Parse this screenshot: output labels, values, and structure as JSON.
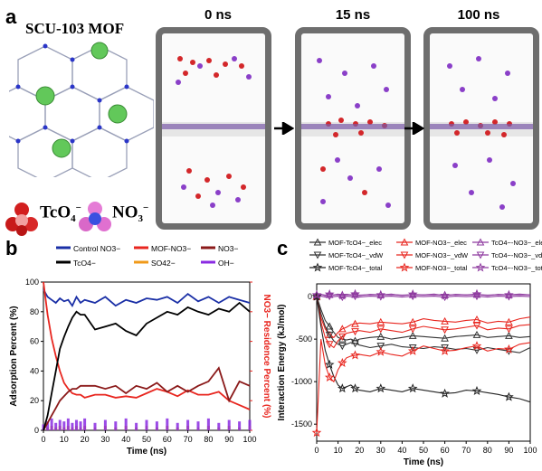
{
  "panel_a": {
    "letter": "a",
    "mof_title": "SCU-103 MOF",
    "times": [
      "0 ns",
      "15 ns",
      "100 ns"
    ],
    "ion1": "TcO",
    "ion1_sub": "4",
    "ion1_sup": "−",
    "ion2": "NO",
    "ion2_sub": "3",
    "ion2_sup": "−"
  },
  "panel_b": {
    "letter": "b",
    "legend": [
      "Control NO3−",
      "MOF-NO3−",
      "NO3−",
      "TcO4−",
      "SO42−",
      "OH−"
    ],
    "legend_colors": [
      "#1a2fa6",
      "#e8261f",
      "#8b1a1a",
      "#000000",
      "#f09a1a",
      "#8a2be2"
    ],
    "chart_data": {
      "type": "line",
      "xlabel": "Time (ns)",
      "ylabel": "Adsorption Percent (%)",
      "y2label": "NO3− Residence Percent (%)",
      "xlim": [
        0,
        100
      ],
      "ylim": [
        0,
        100
      ],
      "x_ticks": [
        "0",
        "10",
        "20",
        "30",
        "40",
        "50",
        "60",
        "70",
        "80",
        "90",
        "100"
      ],
      "y_ticks": [
        "0",
        "20",
        "40",
        "60",
        "80",
        "100"
      ],
      "x": [
        0,
        2,
        4,
        6,
        8,
        10,
        12,
        14,
        16,
        18,
        20,
        25,
        30,
        35,
        40,
        45,
        50,
        55,
        60,
        65,
        70,
        75,
        80,
        85,
        90,
        95,
        100
      ],
      "series": [
        {
          "name": "Control NO3−",
          "color": "#1a2fa6",
          "values": [
            95,
            90,
            88,
            86,
            89,
            87,
            88,
            84,
            90,
            86,
            88,
            86,
            90,
            84,
            88,
            86,
            89,
            88,
            90,
            86,
            92,
            87,
            90,
            86,
            90,
            88,
            86
          ]
        },
        {
          "name": "MOF-NO3−",
          "color": "#e8261f",
          "values": [
            100,
            78,
            62,
            50,
            40,
            32,
            28,
            25,
            24,
            24,
            22,
            24,
            24,
            22,
            23,
            22,
            25,
            28,
            26,
            23,
            27,
            24,
            24,
            26,
            20,
            17,
            14
          ]
        },
        {
          "name": "NO3−",
          "color": "#8b1a1a",
          "values": [
            0,
            5,
            10,
            15,
            20,
            23,
            26,
            28,
            28,
            30,
            30,
            30,
            28,
            30,
            25,
            30,
            28,
            32,
            26,
            30,
            26,
            30,
            33,
            42,
            20,
            33,
            30
          ]
        },
        {
          "name": "TcO4−",
          "color": "#000000",
          "values": [
            0,
            10,
            25,
            40,
            55,
            63,
            70,
            76,
            80,
            78,
            78,
            68,
            70,
            72,
            67,
            64,
            72,
            76,
            80,
            78,
            83,
            80,
            78,
            82,
            80,
            86,
            80
          ]
        },
        {
          "name": "SO42−",
          "color": "#f09a1a",
          "values": [
            0,
            2,
            3,
            2,
            3,
            2,
            3,
            2,
            3,
            2,
            3,
            2,
            3,
            2,
            3,
            2,
            3,
            2,
            3,
            2,
            3,
            2,
            3,
            2,
            3,
            2,
            3
          ]
        },
        {
          "name": "OH−",
          "color": "#8a2be2",
          "values": [
            4,
            6,
            8,
            5,
            7,
            6,
            8,
            5,
            7,
            6,
            8,
            5,
            7,
            6,
            8,
            5,
            7,
            6,
            8,
            5,
            7,
            6,
            8,
            5,
            7,
            6,
            7
          ]
        }
      ]
    }
  },
  "panel_c": {
    "letter": "c",
    "legend": [
      "MOF-TcO4−_elec",
      "MOF-NO3−_elec",
      "TcO4−-NO3−_elec",
      "MOF-TcO4−_vdW",
      "MOF-NO3−_vdW",
      "TcO4−-NO3−_vdW",
      "MOF-TcO4−_total",
      "MOF-NO3−_total",
      "TcO4−-NO3−_total"
    ],
    "chart_data": {
      "type": "line",
      "xlabel": "Time (ns)",
      "ylabel": "Interaction Energy (kJ/mol)",
      "xlim": [
        0,
        100
      ],
      "ylim": [
        -1700,
        150
      ],
      "x_ticks": [
        "0",
        "10",
        "20",
        "30",
        "40",
        "50",
        "60",
        "70",
        "80",
        "90",
        "100"
      ],
      "y_ticks": [
        "0",
        "-500",
        "-1000",
        "-1500"
      ],
      "x": [
        0,
        2,
        4,
        6,
        8,
        10,
        12,
        14,
        16,
        18,
        20,
        25,
        30,
        35,
        40,
        45,
        50,
        55,
        60,
        65,
        70,
        75,
        80,
        85,
        90,
        95,
        100
      ],
      "series": [
        {
          "name": "MOF-TcO4−_elec",
          "color": "#333333",
          "marker": "triangle",
          "values": [
            0,
            -150,
            -280,
            -350,
            -420,
            -480,
            -500,
            -510,
            -500,
            -520,
            -500,
            -480,
            -470,
            -500,
            -480,
            -460,
            -470,
            -480,
            -490,
            -470,
            -460,
            -450,
            -480,
            -470,
            -460,
            -480,
            -470
          ]
        },
        {
          "name": "MOF-NO3−_elec",
          "color": "#e8261f",
          "marker": "triangle",
          "values": [
            0,
            -250,
            -380,
            -450,
            -480,
            -420,
            -380,
            -360,
            -330,
            -320,
            -310,
            -320,
            -300,
            -310,
            -320,
            -300,
            -260,
            -280,
            -290,
            -300,
            -280,
            -270,
            -310,
            -290,
            -300,
            -260,
            -240
          ]
        },
        {
          "name": "TcO4−-NO3−_elec",
          "color": "#8e3a9f",
          "marker": "triangle",
          "values": [
            20,
            25,
            18,
            22,
            20,
            24,
            18,
            22,
            20,
            24,
            18,
            22,
            20,
            24,
            18,
            22,
            20,
            24,
            18,
            22,
            20,
            24,
            18,
            22,
            20,
            24,
            20
          ]
        },
        {
          "name": "MOF-TcO4−_vdW",
          "color": "#333333",
          "marker": "triangle-down",
          "values": [
            0,
            -200,
            -350,
            -450,
            -520,
            -560,
            -580,
            -560,
            -540,
            -550,
            -570,
            -600,
            -580,
            -560,
            -590,
            -600,
            -610,
            -590,
            -600,
            -620,
            -610,
            -630,
            -600,
            -620,
            -640,
            -660,
            -600
          ]
        },
        {
          "name": "MOF-NO3−_vdW",
          "color": "#e8261f",
          "marker": "triangle-down",
          "values": [
            0,
            -300,
            -480,
            -560,
            -600,
            -520,
            -470,
            -430,
            -420,
            -410,
            -400,
            -420,
            -380,
            -400,
            -420,
            -380,
            -350,
            -370,
            -390,
            -380,
            -360,
            -340,
            -390,
            -370,
            -380,
            -340,
            -330
          ]
        },
        {
          "name": "TcO4−-NO3−_vdW",
          "color": "#8e3a9f",
          "marker": "triangle-down",
          "values": [
            0,
            5,
            -5,
            5,
            0,
            5,
            -5,
            5,
            0,
            5,
            -5,
            5,
            0,
            5,
            -5,
            5,
            0,
            5,
            -5,
            5,
            0,
            5,
            -5,
            5,
            0,
            5,
            0
          ]
        },
        {
          "name": "MOF-TcO4−_total",
          "color": "#222222",
          "marker": "star",
          "values": [
            0,
            -350,
            -630,
            -800,
            -940,
            -1040,
            -1080,
            -1060,
            -1040,
            -1080,
            -1100,
            -1120,
            -1080,
            -1100,
            -1120,
            -1080,
            -1100,
            -1120,
            -1140,
            -1130,
            -1100,
            -1110,
            -1130,
            -1150,
            -1180,
            -1200,
            -1240
          ]
        },
        {
          "name": "MOF-NO3−_total",
          "color": "#e8261f",
          "marker": "star",
          "values": [
            -1600,
            -500,
            -800,
            -950,
            -1000,
            -860,
            -780,
            -720,
            -700,
            -690,
            -680,
            -700,
            -650,
            -680,
            -700,
            -640,
            -580,
            -610,
            -640,
            -630,
            -600,
            -580,
            -640,
            -610,
            -620,
            -560,
            -540
          ]
        },
        {
          "name": "TcO4−-NO3−_total",
          "color": "#8e3a9f",
          "marker": "star",
          "values": [
            20,
            30,
            12,
            28,
            20,
            30,
            12,
            28,
            20,
            30,
            12,
            28,
            20,
            30,
            12,
            28,
            20,
            30,
            12,
            28,
            20,
            30,
            12,
            28,
            20,
            30,
            20
          ]
        }
      ]
    }
  }
}
